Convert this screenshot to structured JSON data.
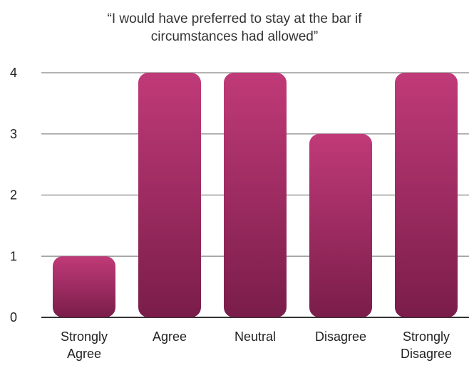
{
  "chart_data": {
    "type": "bar",
    "title": "“I would have preferred to stay at the bar if circumstances had allowed”",
    "title_lines": [
      "“I would have preferred to stay at the bar if",
      "circumstances had allowed”"
    ],
    "categories": [
      [
        "Strongly",
        "Agree"
      ],
      [
        "Agree"
      ],
      [
        "Neutral"
      ],
      [
        "Disagree"
      ],
      [
        "Strongly",
        "Disagree"
      ]
    ],
    "values": [
      1,
      4,
      4,
      3,
      4
    ],
    "ylim": [
      0,
      4
    ],
    "yticks": [
      0,
      1,
      2,
      3,
      4
    ],
    "grid": true,
    "bar_color_top": "#c03a78",
    "bar_color_bottom": "#7a1d4a",
    "grid_color": "#9a9a9a"
  }
}
